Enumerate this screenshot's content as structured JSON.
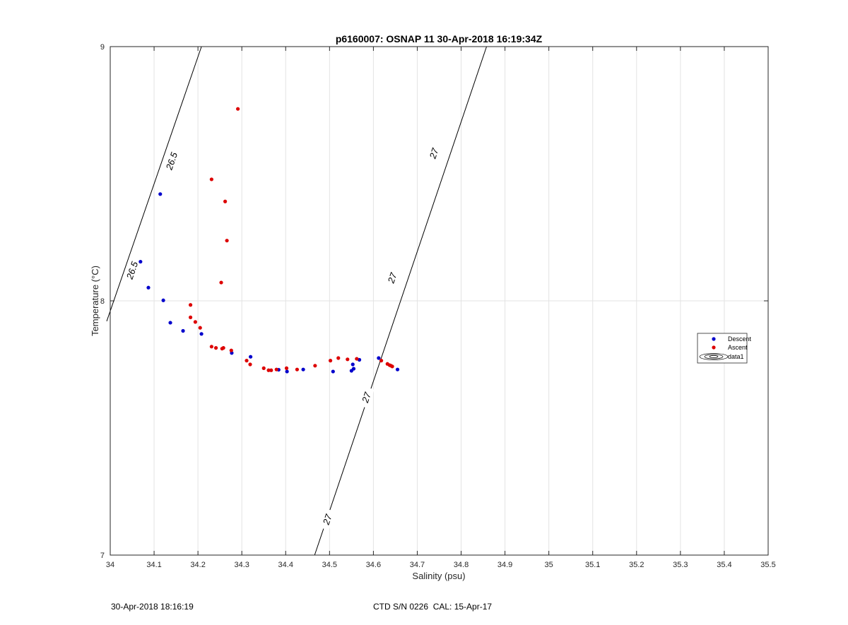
{
  "chart_data": {
    "type": "scatter",
    "title": "p6160007: OSNAP 11 30-Apr-2018 16:19:34Z",
    "xlabel": "Salinity (psu)",
    "ylabel": "Temperature (°C)",
    "xlim": [
      34,
      35.5
    ],
    "ylim": [
      7,
      9
    ],
    "xticks": [
      "34",
      "34.1",
      "34.2",
      "34.3",
      "34.4",
      "34.5",
      "34.6",
      "34.7",
      "34.8",
      "34.9",
      "35",
      "35.1",
      "35.2",
      "35.3",
      "35.4",
      "35.5"
    ],
    "yticks": [
      "7",
      "8",
      "9"
    ],
    "grid": true,
    "legend_position": "right",
    "series": [
      {
        "name": "Descent",
        "color": "#0000cc",
        "points": [
          [
            34.114,
            8.42
          ],
          [
            34.069,
            8.154
          ],
          [
            34.087,
            8.052
          ],
          [
            34.121,
            8.002
          ],
          [
            34.137,
            7.914
          ],
          [
            34.166,
            7.882
          ],
          [
            34.208,
            7.87
          ],
          [
            34.277,
            7.795
          ],
          [
            34.32,
            7.78
          ],
          [
            34.384,
            7.729
          ],
          [
            34.403,
            7.722
          ],
          [
            34.44,
            7.73
          ],
          [
            34.508,
            7.722
          ],
          [
            34.55,
            7.725
          ],
          [
            34.555,
            7.733
          ],
          [
            34.553,
            7.75
          ],
          [
            34.568,
            7.768
          ],
          [
            34.612,
            7.775
          ],
          [
            34.655,
            7.73
          ]
        ]
      },
      {
        "name": "Ascent",
        "color": "#dd0000",
        "points": [
          [
            34.291,
            8.755
          ],
          [
            34.231,
            8.478
          ],
          [
            34.262,
            8.391
          ],
          [
            34.266,
            8.237
          ],
          [
            34.253,
            8.072
          ],
          [
            34.183,
            7.984
          ],
          [
            34.183,
            7.935
          ],
          [
            34.194,
            7.917
          ],
          [
            34.205,
            7.894
          ],
          [
            34.231,
            7.82
          ],
          [
            34.241,
            7.815
          ],
          [
            34.255,
            7.812
          ],
          [
            34.258,
            7.815
          ],
          [
            34.276,
            7.805
          ],
          [
            34.311,
            7.765
          ],
          [
            34.319,
            7.75
          ],
          [
            34.35,
            7.735
          ],
          [
            34.361,
            7.727
          ],
          [
            34.367,
            7.727
          ],
          [
            34.379,
            7.73
          ],
          [
            34.402,
            7.735
          ],
          [
            34.426,
            7.73
          ],
          [
            34.467,
            7.745
          ],
          [
            34.502,
            7.765
          ],
          [
            34.52,
            7.775
          ],
          [
            34.541,
            7.77
          ],
          [
            34.562,
            7.772
          ],
          [
            34.618,
            7.765
          ],
          [
            34.632,
            7.752
          ],
          [
            34.637,
            7.747
          ],
          [
            34.64,
            7.745
          ],
          [
            34.643,
            7.742
          ]
        ]
      },
      {
        "name": "data1",
        "type": "contour",
        "levels": [
          {
            "label": "26.5",
            "line": [
              [
                33.992,
                7.92
              ],
              [
                34.208,
                9.0
              ]
            ],
            "label_points": [
              [
                34.05,
                8.12
              ],
              [
                34.14,
                8.55
              ]
            ]
          },
          {
            "label": "27",
            "line": [
              [
                34.466,
                7.0
              ],
              [
                34.858,
                9.0
              ]
            ],
            "label_points": [
              [
                34.495,
                7.14
              ],
              [
                34.584,
                7.62
              ],
              [
                34.643,
                8.09
              ],
              [
                34.738,
                8.58
              ]
            ]
          }
        ]
      }
    ]
  },
  "footer": {
    "timestamp": "30-Apr-2018 18:16:19",
    "ctd_info": "CTD S/N 0226  CAL: 15-Apr-17"
  }
}
